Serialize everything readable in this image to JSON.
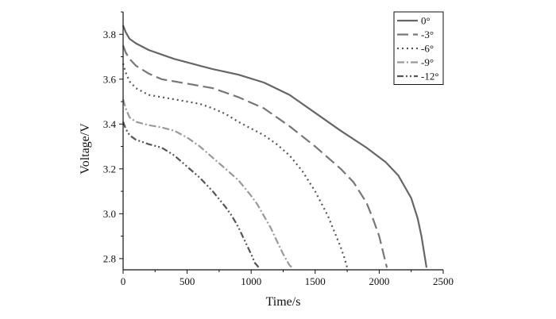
{
  "chart_data": {
    "type": "line",
    "xlabel": "Time/s",
    "ylabel": "Voltage/V",
    "xlim": [
      0,
      2500
    ],
    "ylim": [
      2.75,
      3.9
    ],
    "xticks": [
      0,
      500,
      1000,
      1500,
      2000,
      2500
    ],
    "yticks": [
      2.8,
      3.0,
      3.2,
      3.4,
      3.6,
      3.8
    ],
    "xtick_labels": [
      "0",
      "500",
      "1000",
      "1500",
      "2000",
      "2500"
    ],
    "ytick_labels": [
      "2.8",
      "3.0",
      "3.2",
      "3.4",
      "3.6",
      "3.8"
    ],
    "grid": false,
    "legend_position": "top-right",
    "series": [
      {
        "name": "0°",
        "color": "#666666",
        "dash": "solid",
        "x": [
          0,
          20,
          50,
          100,
          200,
          300,
          400,
          500,
          700,
          900,
          1100,
          1300,
          1500,
          1700,
          1900,
          2050,
          2150,
          2250,
          2300,
          2330,
          2350,
          2370
        ],
        "y": [
          3.84,
          3.81,
          3.78,
          3.76,
          3.73,
          3.71,
          3.69,
          3.675,
          3.645,
          3.62,
          3.585,
          3.53,
          3.45,
          3.37,
          3.295,
          3.23,
          3.17,
          3.07,
          2.98,
          2.9,
          2.83,
          2.76
        ]
      },
      {
        "name": "-3°",
        "color": "#777777",
        "dash": "long-dash",
        "x": [
          0,
          20,
          50,
          100,
          200,
          300,
          400,
          500,
          700,
          900,
          1100,
          1300,
          1500,
          1700,
          1800,
          1900,
          1950,
          2000,
          2030,
          2060
        ],
        "y": [
          3.75,
          3.72,
          3.69,
          3.66,
          3.625,
          3.6,
          3.59,
          3.58,
          3.56,
          3.52,
          3.47,
          3.39,
          3.3,
          3.2,
          3.14,
          3.05,
          2.98,
          2.9,
          2.83,
          2.76
        ]
      },
      {
        "name": "-6°",
        "color": "#555555",
        "dash": "dot",
        "x": [
          0,
          20,
          50,
          100,
          200,
          300,
          400,
          500,
          600,
          700,
          800,
          900,
          1000,
          1100,
          1200,
          1300,
          1400,
          1500,
          1600,
          1650,
          1700,
          1730,
          1750
        ],
        "y": [
          3.67,
          3.63,
          3.59,
          3.56,
          3.53,
          3.52,
          3.51,
          3.5,
          3.49,
          3.47,
          3.445,
          3.41,
          3.38,
          3.35,
          3.31,
          3.26,
          3.19,
          3.1,
          2.99,
          2.92,
          2.85,
          2.8,
          2.76
        ]
      },
      {
        "name": "-9°",
        "color": "#999999",
        "dash": "dash-dot",
        "x": [
          0,
          20,
          50,
          100,
          200,
          300,
          400,
          500,
          600,
          700,
          800,
          900,
          1000,
          1050,
          1100,
          1150,
          1200,
          1250,
          1280,
          1300,
          1320
        ],
        "y": [
          3.51,
          3.47,
          3.43,
          3.41,
          3.395,
          3.385,
          3.37,
          3.34,
          3.3,
          3.25,
          3.2,
          3.15,
          3.08,
          3.04,
          2.99,
          2.94,
          2.88,
          2.82,
          2.79,
          2.77,
          2.76
        ]
      },
      {
        "name": "-12°",
        "color": "#555555",
        "dash": "dash-dot-dot",
        "x": [
          0,
          20,
          50,
          100,
          200,
          300,
          400,
          500,
          600,
          700,
          800,
          850,
          900,
          950,
          1000,
          1030,
          1060
        ],
        "y": [
          3.41,
          3.38,
          3.35,
          3.33,
          3.31,
          3.295,
          3.26,
          3.21,
          3.16,
          3.1,
          3.03,
          2.99,
          2.94,
          2.88,
          2.82,
          2.78,
          2.76
        ]
      }
    ]
  }
}
